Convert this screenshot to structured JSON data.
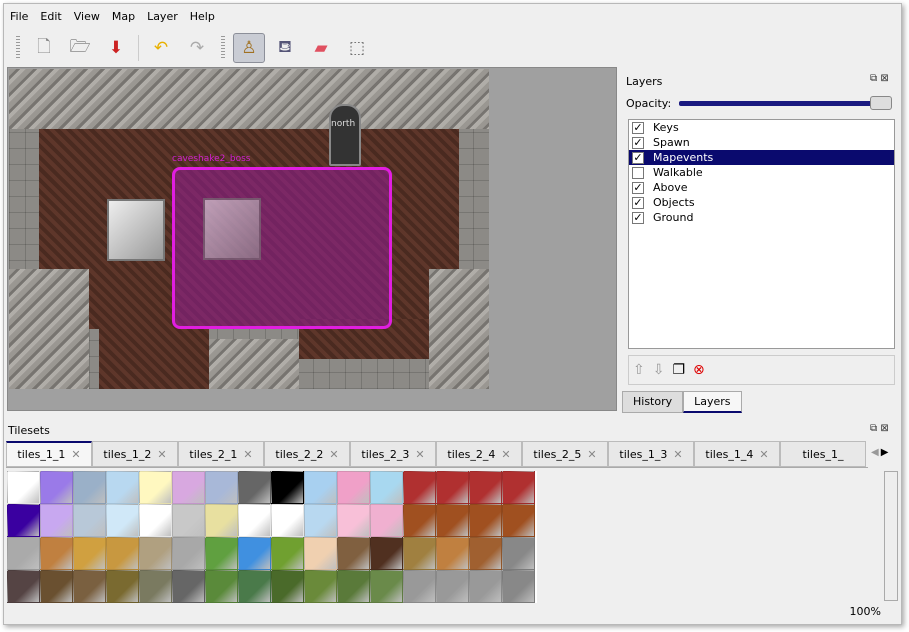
{
  "menu": [
    "File",
    "Edit",
    "View",
    "Map",
    "Layer",
    "Help"
  ],
  "toolbar": [
    {
      "name": "new-file",
      "glyph": "🗋"
    },
    {
      "name": "open-folder",
      "glyph": "🗁"
    },
    {
      "name": "save",
      "glyph": "⬇"
    },
    {
      "name": "undo",
      "glyph": "↶"
    },
    {
      "name": "redo",
      "glyph": "↷"
    },
    {
      "name": "stamp-brush",
      "glyph": "♙",
      "active": true
    },
    {
      "name": "bucket-fill",
      "glyph": "⛾"
    },
    {
      "name": "eraser",
      "glyph": "▰"
    },
    {
      "name": "rect-select",
      "glyph": "⬚"
    }
  ],
  "map": {
    "objects": [
      {
        "label": "caveshake2_boss"
      },
      {
        "label": "north"
      }
    ],
    "selection_color": "#e01ee0"
  },
  "layers_panel": {
    "title": "Layers",
    "opacity_label": "Opacity:",
    "opacity": 1.0,
    "layers": [
      {
        "name": "Keys",
        "visible": true
      },
      {
        "name": "Spawn",
        "visible": true
      },
      {
        "name": "Mapevents",
        "visible": true,
        "selected": true
      },
      {
        "name": "Walkable",
        "visible": false
      },
      {
        "name": "Above",
        "visible": true
      },
      {
        "name": "Objects",
        "visible": true
      },
      {
        "name": "Ground",
        "visible": true
      }
    ],
    "tabs": [
      "History",
      "Layers"
    ],
    "active_tab": "Layers"
  },
  "tilesets": {
    "title": "Tilesets",
    "tabs": [
      "tiles_1_1",
      "tiles_1_2",
      "tiles_2_1",
      "tiles_2_2",
      "tiles_2_3",
      "tiles_2_4",
      "tiles_2_5",
      "tiles_1_3",
      "tiles_1_4",
      "tiles_1_"
    ],
    "active": "tiles_1_1"
  },
  "status": {
    "zoom": "100%"
  }
}
